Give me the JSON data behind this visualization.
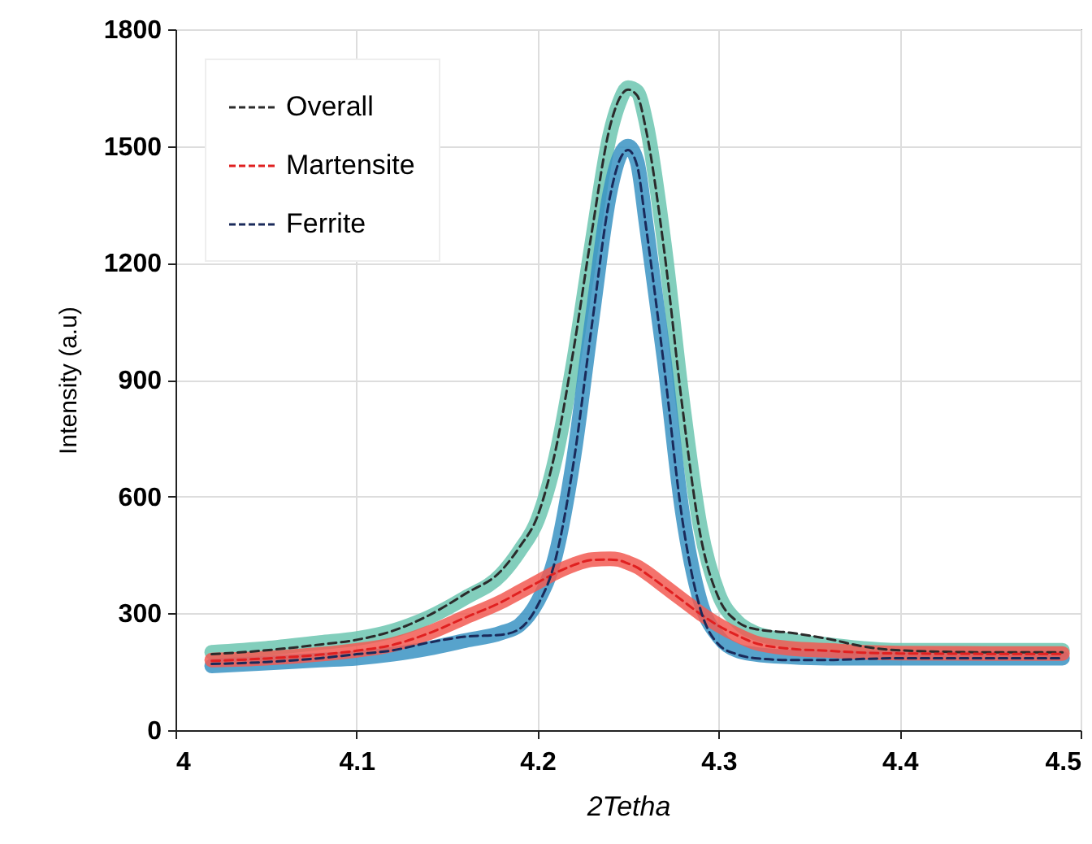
{
  "chart_data": {
    "type": "line",
    "xlabel": "2Tetha",
    "ylabel": "Intensity (a.u)",
    "x": [
      4.02,
      4.05,
      4.08,
      4.1,
      4.12,
      4.14,
      4.16,
      4.18,
      4.19,
      4.2,
      4.21,
      4.22,
      4.23,
      4.24,
      4.245,
      4.25,
      4.255,
      4.26,
      4.27,
      4.28,
      4.29,
      4.3,
      4.31,
      4.32,
      4.34,
      4.36,
      4.38,
      4.4,
      4.45,
      4.49
    ],
    "series": [
      {
        "color": "#6cc5b0",
        "line_style": "solid",
        "values": [
          200,
          210,
          225,
          235,
          255,
          290,
          340,
          400,
          460,
          540,
          700,
          950,
          1250,
          1530,
          1610,
          1650,
          1640,
          1560,
          1250,
          850,
          520,
          350,
          280,
          250,
          230,
          220,
          210,
          205,
          205,
          205
        ]
      },
      {
        "color": "#3a93c3",
        "line_style": "solid",
        "values": [
          165,
          172,
          180,
          185,
          195,
          210,
          230,
          250,
          270,
          330,
          450,
          700,
          1050,
          1380,
          1470,
          1500,
          1460,
          1300,
          950,
          560,
          330,
          240,
          205,
          195,
          188,
          185,
          185,
          185,
          185,
          185
        ]
      },
      {
        "color": "#f25a52",
        "line_style": "solid",
        "values": [
          180,
          185,
          195,
          205,
          220,
          250,
          290,
          330,
          355,
          380,
          405,
          425,
          438,
          440,
          438,
          430,
          420,
          405,
          370,
          335,
          300,
          270,
          245,
          225,
          210,
          205,
          200,
          198,
          197,
          197
        ]
      },
      {
        "name": "Overall",
        "color": "#2b2b2b",
        "line_style": "dashed",
        "values": [
          195,
          205,
          220,
          232,
          255,
          295,
          350,
          410,
          470,
          550,
          720,
          980,
          1280,
          1550,
          1620,
          1645,
          1630,
          1540,
          1230,
          830,
          500,
          340,
          280,
          260,
          250,
          235,
          215,
          205,
          200,
          200
        ]
      },
      {
        "name": "Martensite",
        "color": "#e02020",
        "line_style": "dashed",
        "values": [
          178,
          184,
          194,
          204,
          219,
          249,
          289,
          329,
          354,
          379,
          404,
          424,
          437,
          438,
          436,
          428,
          418,
          402,
          368,
          333,
          298,
          268,
          244,
          224,
          209,
          204,
          199,
          197,
          196,
          196
        ]
      },
      {
        "name": "Ferrite",
        "color": "#1a2a5a",
        "line_style": "dashed",
        "values": [
          170,
          175,
          185,
          195,
          205,
          225,
          240,
          245,
          260,
          320,
          440,
          690,
          1040,
          1370,
          1460,
          1490,
          1450,
          1290,
          930,
          540,
          310,
          220,
          195,
          185,
          180,
          180,
          183,
          185,
          185,
          185
        ]
      }
    ],
    "xlim": [
      4,
      4.5
    ],
    "xticks": [
      4,
      4.1,
      4.2,
      4.3,
      4.4,
      4.5
    ],
    "ylim": [
      0,
      1800
    ],
    "yticks": [
      0,
      300,
      600,
      900,
      1200,
      1500,
      1800
    ],
    "grid": true,
    "legend": "top left"
  }
}
